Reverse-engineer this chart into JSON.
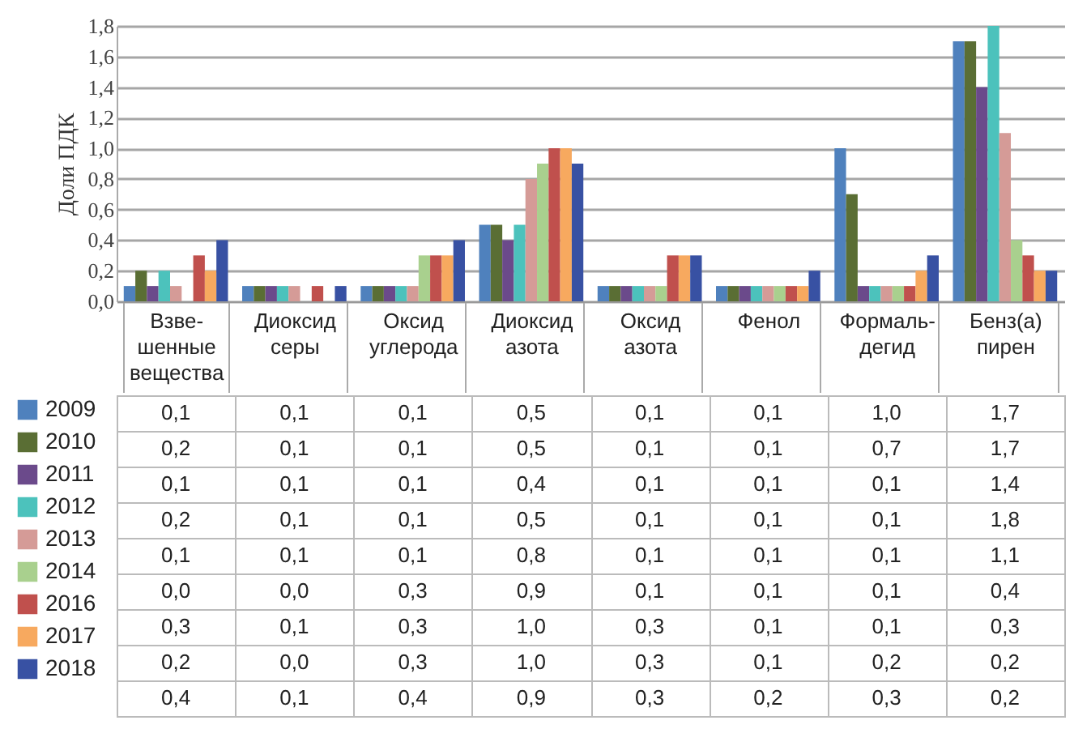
{
  "chart_data": {
    "type": "bar",
    "ylabel": "Доли ПДК",
    "categories": [
      "Взве-шенные вещества",
      "Диоксид серы",
      "Оксид углерода",
      "Диоксид азота",
      "Оксид азота",
      "Фенол",
      "Формаль-дегид",
      "Бенз(а) пирен"
    ],
    "series": [
      {
        "name": "2009",
        "color": "#4f81bd",
        "values": [
          0.1,
          0.1,
          0.1,
          0.5,
          0.1,
          0.1,
          1.0,
          1.7
        ],
        "value_labels": [
          "0,1",
          "0,1",
          "0,1",
          "0,5",
          "0,1",
          "0,1",
          "1,0",
          "1,7"
        ]
      },
      {
        "name": "2010",
        "color": "#5a6e34",
        "values": [
          0.2,
          0.1,
          0.1,
          0.5,
          0.1,
          0.1,
          0.7,
          1.7
        ],
        "value_labels": [
          "0,2",
          "0,1",
          "0,1",
          "0,5",
          "0,1",
          "0,1",
          "0,7",
          "1,7"
        ]
      },
      {
        "name": "2011",
        "color": "#6b4a8b",
        "values": [
          0.1,
          0.1,
          0.1,
          0.4,
          0.1,
          0.1,
          0.1,
          1.4
        ],
        "value_labels": [
          "0,1",
          "0,1",
          "0,1",
          "0,4",
          "0,1",
          "0,1",
          "0,1",
          "1,4"
        ]
      },
      {
        "name": "2012",
        "color": "#4cc2bc",
        "values": [
          0.2,
          0.1,
          0.1,
          0.5,
          0.1,
          0.1,
          0.1,
          1.8
        ],
        "value_labels": [
          "0,2",
          "0,1",
          "0,1",
          "0,5",
          "0,1",
          "0,1",
          "0,1",
          "1,8"
        ]
      },
      {
        "name": "2013",
        "color": "#d59b97",
        "values": [
          0.1,
          0.1,
          0.1,
          0.8,
          0.1,
          0.1,
          0.1,
          1.1
        ],
        "value_labels": [
          "0,1",
          "0,1",
          "0,1",
          "0,8",
          "0,1",
          "0,1",
          "0,1",
          "1,1"
        ]
      },
      {
        "name": "2014",
        "color": "#a9d08e",
        "values": [
          0.0,
          0.0,
          0.3,
          0.9,
          0.1,
          0.1,
          0.1,
          0.4
        ],
        "value_labels": [
          "0,0",
          "0,0",
          "0,3",
          "0,9",
          "0,1",
          "0,1",
          "0,1",
          "0,4"
        ]
      },
      {
        "name": "2016",
        "color": "#c0504d",
        "values": [
          0.3,
          0.1,
          0.3,
          1.0,
          0.3,
          0.1,
          0.1,
          0.3
        ],
        "value_labels": [
          "0,3",
          "0,1",
          "0,3",
          "1,0",
          "0,3",
          "0,1",
          "0,1",
          "0,3"
        ]
      },
      {
        "name": "2017",
        "color": "#f7a95f",
        "values": [
          0.2,
          0.0,
          0.3,
          1.0,
          0.3,
          0.1,
          0.2,
          0.2
        ],
        "value_labels": [
          "0,2",
          "0,0",
          "0,3",
          "1,0",
          "0,3",
          "0,1",
          "0,2",
          "0,2"
        ]
      },
      {
        "name": "2018",
        "color": "#3851a3",
        "values": [
          0.4,
          0.1,
          0.4,
          0.9,
          0.3,
          0.2,
          0.3,
          0.2
        ],
        "value_labels": [
          "0,4",
          "0,1",
          "0,4",
          "0,9",
          "0,3",
          "0,2",
          "0,3",
          "0,2"
        ]
      }
    ],
    "ylim": [
      0,
      1.8
    ],
    "yticks": [
      {
        "value": 0,
        "label": "0,0"
      },
      {
        "value": 0.2,
        "label": "0,2"
      },
      {
        "value": 0.4,
        "label": "0,4"
      },
      {
        "value": 0.6,
        "label": "0,6"
      },
      {
        "value": 0.8,
        "label": "0,8"
      },
      {
        "value": 1.0,
        "label": "1,0"
      },
      {
        "value": 1.2,
        "label": "1,2"
      },
      {
        "value": 1.4,
        "label": "1,4"
      },
      {
        "value": 1.6,
        "label": "1,6"
      },
      {
        "value": 1.8,
        "label": "1,8"
      }
    ],
    "grid": "y",
    "legend": "bottom left"
  }
}
